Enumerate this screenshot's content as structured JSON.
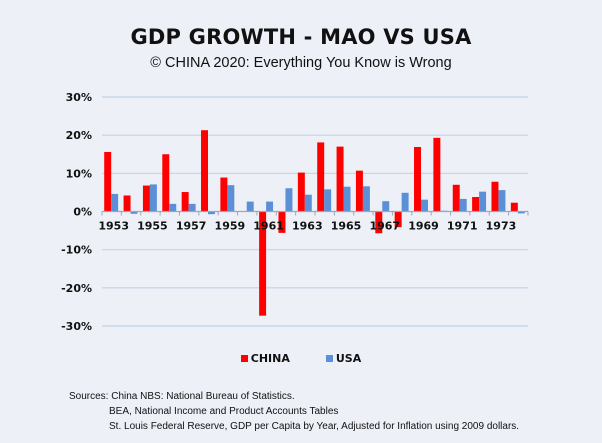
{
  "chart_data": {
    "type": "bar",
    "title": "GDP GROWTH - MAO VS USA",
    "subtitle": "© CHINA 2020: Everything You Know is Wrong",
    "xlabel": "",
    "ylabel": "",
    "ylim": [
      -30,
      30
    ],
    "yticks": [
      30,
      20,
      10,
      0,
      -10,
      -20,
      -30
    ],
    "ytick_labels": [
      "30%",
      "20%",
      "10%",
      "0%",
      "-10%",
      "-20%",
      "-30%"
    ],
    "grid": true,
    "legend_position": "bottom",
    "categories": [
      "1953",
      "1954",
      "1955",
      "1956",
      "1957",
      "1958",
      "1959",
      "1960",
      "1961",
      "1962",
      "1963",
      "1964",
      "1965",
      "1966",
      "1967",
      "1968",
      "1969",
      "1970",
      "1971",
      "1972",
      "1973",
      "1974"
    ],
    "xtick_labels_shown": [
      "1953",
      "1955",
      "1957",
      "1959",
      "1961",
      "1963",
      "1965",
      "1967",
      "1969",
      "1971",
      "1973"
    ],
    "series": [
      {
        "name": "CHINA",
        "color": "#ff0000",
        "values": [
          15.6,
          4.2,
          6.8,
          15.0,
          5.1,
          21.3,
          8.9,
          0.0,
          -27.3,
          -5.6,
          10.2,
          18.1,
          17.0,
          10.7,
          -5.7,
          -4.1,
          16.9,
          19.3,
          7.0,
          3.8,
          7.8,
          2.3
        ]
      },
      {
        "name": "USA",
        "color": "#5b8fd6",
        "values": [
          4.6,
          -0.6,
          7.1,
          2.0,
          2.0,
          -0.7,
          6.9,
          2.6,
          2.6,
          6.1,
          4.4,
          5.8,
          6.5,
          6.6,
          2.7,
          4.9,
          3.1,
          0.2,
          3.3,
          5.2,
          5.6,
          -0.5
        ]
      }
    ]
  },
  "legend": {
    "china_label": "CHINA",
    "usa_label": "USA"
  },
  "sources": {
    "line1": "Sources: China NBS: National Bureau of Statistics.",
    "line2": "BEA, National Income and Product Accounts Tables",
    "line3": "St. Louis Federal Reserve, GDP per Capita by Year, Adjusted for Inflation using 2009 dollars."
  }
}
